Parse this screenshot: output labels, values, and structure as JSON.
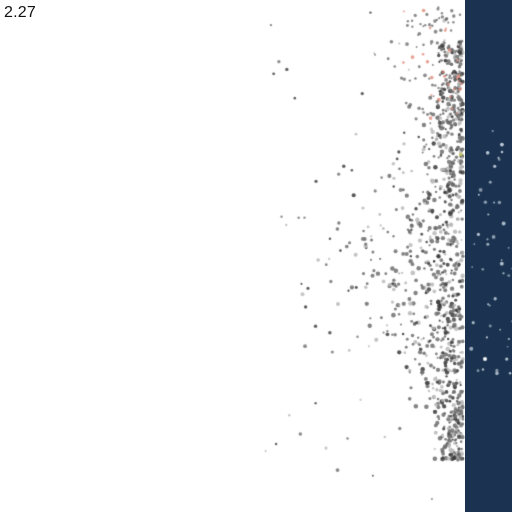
{
  "hud": {
    "value_label": "2.27"
  },
  "colors": {
    "background": "#ffffff",
    "wall": "#1b3350",
    "particle_dark": "#3a3a3a",
    "particle_mid": "#6f6f6f",
    "particle_light": "#b8b8b8",
    "particle_warm": "#e0897a",
    "particle_accent": "#c9c86a",
    "wall_particle": "#c8d4e0"
  }
}
